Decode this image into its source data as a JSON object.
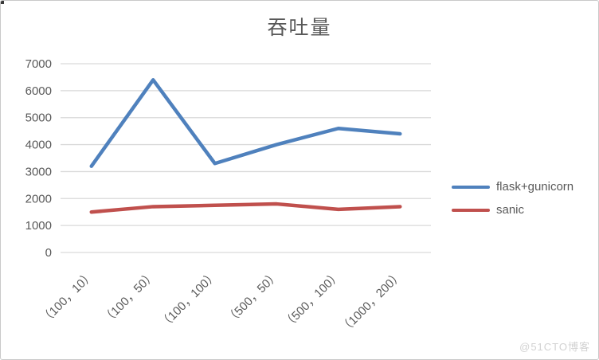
{
  "chart_data": {
    "type": "line",
    "title": "吞吐量",
    "categories": [
      "（100，10）",
      "（100，50）",
      "（100，100）",
      "（500，50）",
      "（500，100）",
      "（1000，200）"
    ],
    "series": [
      {
        "name": "flask+gunicorn",
        "color": "#4F81BD",
        "values": [
          3200,
          6400,
          3300,
          4000,
          4600,
          4400
        ]
      },
      {
        "name": "sanic",
        "color": "#C0504D",
        "values": [
          1500,
          1700,
          1750,
          1800,
          1600,
          1700
        ]
      }
    ],
    "ylim": [
      0,
      7000
    ],
    "ytick_step": 1000,
    "yticks": [
      0,
      1000,
      2000,
      3000,
      4000,
      5000,
      6000,
      7000
    ],
    "grid": true,
    "legend_position": "right",
    "gridline_color": "#D9D9D9",
    "axis_text_color": "#595959",
    "xlabel": "",
    "ylabel": ""
  },
  "watermark": "@51CTO博客"
}
